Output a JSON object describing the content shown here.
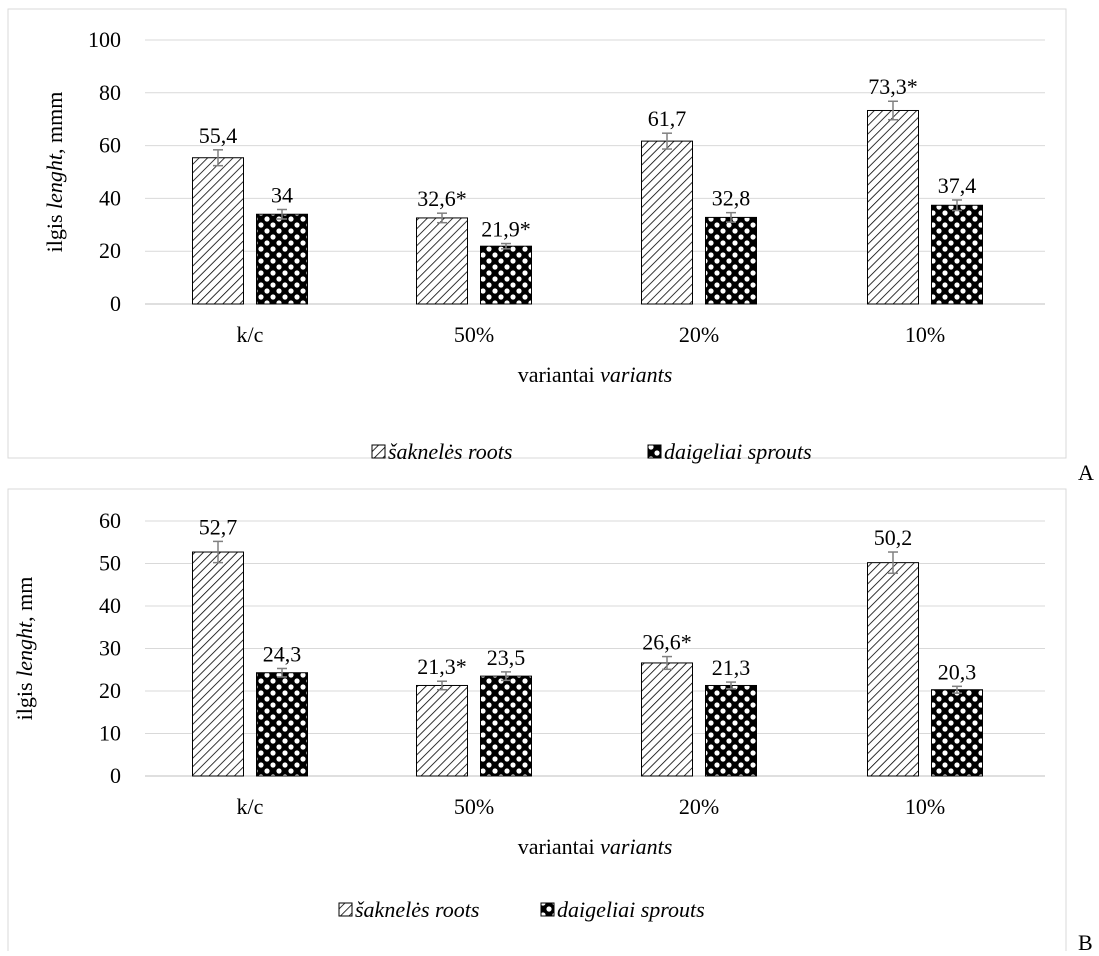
{
  "panels": [
    {
      "panel_label": "A",
      "yaxis": {
        "prefix": "ilgis ",
        "italic": "lenght",
        "suffix": ", mmm"
      },
      "xaxis": {
        "prefix": "variantai ",
        "italic": "variants"
      },
      "legend": [
        {
          "italic": "šaknelės roots",
          "pattern": "hatch"
        },
        {
          "italic": "daigeliai sprouts",
          "pattern": "dots"
        }
      ]
    },
    {
      "panel_label": "B",
      "yaxis": {
        "prefix": "ilgis ",
        "italic": "lenght",
        "suffix": ", mm"
      },
      "xaxis": {
        "prefix": "variantai ",
        "italic": "variants"
      },
      "legend": [
        {
          "italic": "šaknelės roots",
          "pattern": "hatch"
        },
        {
          "italic": "daigeliai sprouts",
          "pattern": "dots"
        }
      ]
    }
  ],
  "chart_data": [
    {
      "type": "bar",
      "categories": [
        "k/c",
        "50%",
        "20%",
        "10%"
      ],
      "ylim": [
        0,
        100
      ],
      "yticks": [
        0,
        20,
        40,
        60,
        80,
        100
      ],
      "grid": true,
      "legend_position": "bottom",
      "series": [
        {
          "name": "šaknelės roots",
          "values": [
            55.4,
            32.6,
            61.7,
            73.3
          ],
          "labels": [
            "55,4",
            "32,6*",
            "61,7",
            "73,3*"
          ],
          "errors": [
            3,
            1.8,
            3,
            3.5
          ]
        },
        {
          "name": "daigeliai sprouts",
          "values": [
            34,
            21.9,
            32.8,
            37.4
          ],
          "labels": [
            "34",
            "21,9*",
            "32,8",
            "37,4"
          ],
          "errors": [
            1.8,
            1,
            1.8,
            2
          ]
        }
      ]
    },
    {
      "type": "bar",
      "categories": [
        "k/c",
        "50%",
        "20%",
        "10%"
      ],
      "ylim": [
        0,
        60
      ],
      "yticks": [
        0,
        10,
        20,
        30,
        40,
        50,
        60
      ],
      "grid": true,
      "legend_position": "bottom",
      "series": [
        {
          "name": "šaknelės roots",
          "values": [
            52.7,
            21.3,
            26.6,
            50.2
          ],
          "labels": [
            "52,7",
            "21,3*",
            "26,6*",
            "50,2"
          ],
          "errors": [
            2.5,
            1,
            1.5,
            2.5
          ]
        },
        {
          "name": "daigeliai sprouts",
          "values": [
            24.3,
            23.5,
            21.3,
            20.3
          ],
          "labels": [
            "24,3",
            "23,5",
            "21,3",
            "20,3"
          ],
          "errors": [
            1,
            1,
            0.8,
            0.8
          ]
        }
      ]
    }
  ]
}
